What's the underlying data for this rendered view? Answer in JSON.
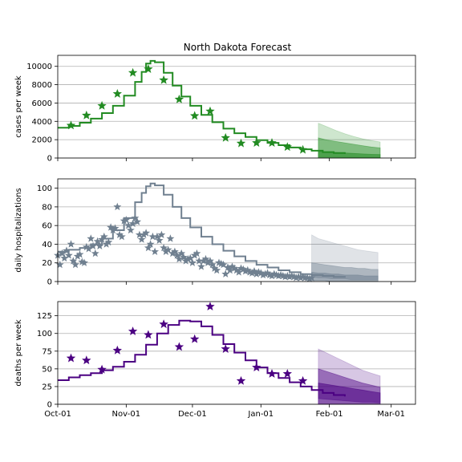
{
  "title": "North Dakota Forecast",
  "colors": {
    "cases": "#228B22",
    "hospitalizations": "#708090",
    "deaths": "#4B0082",
    "grid": "#b0b0b0"
  },
  "x_axis": {
    "ticks": [
      {
        "day": 0,
        "label": "Oct-01"
      },
      {
        "day": 31,
        "label": "Nov-01"
      },
      {
        "day": 61,
        "label": "Dec-01"
      },
      {
        "day": 92,
        "label": "Jan-01"
      },
      {
        "day": 123,
        "label": "Feb-01"
      },
      {
        "day": 151,
        "label": "Mar-01"
      }
    ],
    "range": [
      0,
      162
    ]
  },
  "chart_data": [
    {
      "type": "line",
      "ylabel": "cases per week",
      "ylim": [
        0,
        11200
      ],
      "yticks": [
        0,
        2000,
        4000,
        6000,
        8000,
        10000
      ],
      "grid": true,
      "model_curve": {
        "x": [
          0,
          5,
          10,
          15,
          20,
          25,
          30,
          35,
          38,
          40,
          42,
          44,
          48,
          52,
          56,
          60,
          65,
          70,
          75,
          80,
          85,
          90,
          95,
          100,
          105,
          110,
          115,
          120,
          125,
          130
        ],
        "y": [
          3300,
          3500,
          3850,
          4300,
          4900,
          5700,
          6800,
          8300,
          9400,
          10300,
          10600,
          10450,
          9300,
          7900,
          6700,
          5700,
          4700,
          3900,
          3200,
          2700,
          2300,
          1950,
          1650,
          1400,
          1150,
          950,
          800,
          650,
          550,
          450
        ]
      },
      "observed": {
        "x": [
          6,
          13,
          20,
          27,
          34,
          41,
          48,
          55,
          62,
          69,
          76,
          83,
          90,
          97,
          104,
          111
        ],
        "y": [
          3550,
          4650,
          5700,
          7000,
          9300,
          9700,
          8500,
          6400,
          4600,
          5100,
          2200,
          1600,
          1650,
          1650,
          1200,
          900
        ]
      },
      "forecast": {
        "x": [
          118,
          122,
          126,
          130,
          134,
          138,
          142,
          146
        ],
        "q05": [
          0,
          0,
          0,
          0,
          0,
          0,
          0,
          0
        ],
        "q25": [
          100,
          100,
          90,
          80,
          70,
          60,
          60,
          50
        ],
        "q50": [
          700,
          650,
          600,
          550,
          500,
          450,
          400,
          380
        ],
        "q75": [
          2200,
          1950,
          1800,
          1650,
          1500,
          1350,
          1200,
          1100
        ],
        "q95": [
          3800,
          3400,
          3000,
          2650,
          2350,
          2100,
          1900,
          1750
        ]
      }
    },
    {
      "type": "line",
      "ylabel": "daily hospitalizations",
      "ylim": [
        0,
        110
      ],
      "yticks": [
        0,
        20,
        40,
        60,
        80,
        100
      ],
      "grid": true,
      "model_curve": {
        "x": [
          0,
          5,
          10,
          15,
          20,
          25,
          30,
          35,
          38,
          40,
          42,
          44,
          48,
          52,
          56,
          60,
          65,
          70,
          75,
          80,
          85,
          90,
          95,
          100,
          105,
          110,
          115,
          120,
          125,
          130
        ],
        "y": [
          32,
          34,
          36,
          40,
          46,
          55,
          68,
          85,
          95,
          102,
          105,
          103,
          93,
          80,
          68,
          58,
          48,
          40,
          33,
          27,
          22,
          18,
          15,
          12,
          10,
          8,
          7,
          6,
          5,
          4
        ]
      },
      "observed": {
        "x": [
          0,
          1,
          2,
          3,
          4,
          5,
          6,
          7,
          8,
          9,
          10,
          11,
          12,
          13,
          14,
          15,
          16,
          17,
          18,
          19,
          20,
          21,
          22,
          23,
          24,
          25,
          26,
          27,
          28,
          29,
          30,
          31,
          32,
          33,
          34,
          35,
          36,
          37,
          38,
          39,
          40,
          41,
          42,
          43,
          44,
          45,
          46,
          47,
          48,
          49,
          50,
          51,
          52,
          53,
          54,
          55,
          56,
          57,
          58,
          59,
          60,
          61,
          62,
          63,
          64,
          65,
          66,
          67,
          68,
          69,
          70,
          71,
          72,
          73,
          74,
          75,
          76,
          77,
          78,
          79,
          80,
          81,
          82,
          83,
          84,
          85,
          86,
          87,
          88,
          89,
          90,
          91,
          92,
          93,
          94,
          95,
          96,
          97,
          98,
          99,
          100,
          101,
          102,
          103,
          104,
          105,
          106,
          107,
          108,
          109,
          110,
          111,
          112,
          113,
          114,
          115
        ],
        "y": [
          28,
          18,
          30,
          25,
          33,
          28,
          40,
          22,
          18,
          27,
          29,
          21,
          20,
          37,
          35,
          46,
          38,
          30,
          43,
          38,
          45,
          48,
          40,
          42,
          58,
          55,
          57,
          80,
          50,
          48,
          65,
          66,
          60,
          55,
          62,
          68,
          64,
          50,
          45,
          50,
          52,
          36,
          40,
          48,
          32,
          48,
          44,
          50,
          36,
          32,
          34,
          46,
          30,
          32,
          28,
          24,
          30,
          26,
          22,
          24,
          25,
          20,
          28,
          30,
          22,
          16,
          22,
          24,
          20,
          22,
          18,
          14,
          12,
          20,
          19,
          18,
          8,
          15,
          12,
          16,
          14,
          12,
          10,
          14,
          13,
          11,
          12,
          10,
          9,
          11,
          8,
          10,
          9,
          7,
          8,
          9,
          7,
          6,
          8,
          7,
          6,
          7,
          6,
          5,
          6,
          5,
          6,
          5,
          4,
          5,
          4,
          5,
          4,
          4,
          3,
          4
        ]
      },
      "forecast": {
        "x": [
          115,
          118,
          121,
          124,
          127,
          130,
          133,
          136,
          139,
          142,
          145
        ],
        "q05": [
          1,
          1,
          1,
          0,
          0,
          0,
          0,
          0,
          0,
          0,
          0
        ],
        "q25": [
          5,
          4,
          4,
          3,
          3,
          3,
          2,
          2,
          2,
          2,
          2
        ],
        "q50": [
          10,
          9,
          9,
          8,
          8,
          7,
          7,
          7,
          6,
          6,
          6
        ],
        "q75": [
          20,
          19,
          18,
          17,
          16,
          15,
          15,
          14,
          14,
          13,
          13
        ],
        "q95": [
          50,
          46,
          44,
          42,
          40,
          38,
          36,
          34,
          33,
          32,
          31
        ]
      }
    },
    {
      "type": "line",
      "ylabel": "deaths per week",
      "xlabel": "",
      "ylim": [
        0,
        145
      ],
      "yticks": [
        0,
        25,
        50,
        75,
        100,
        125
      ],
      "grid": true,
      "model_curve": {
        "x": [
          0,
          5,
          10,
          15,
          20,
          25,
          30,
          35,
          40,
          45,
          50,
          55,
          60,
          65,
          70,
          75,
          80,
          85,
          90,
          95,
          100,
          105,
          110,
          115,
          120,
          125,
          130
        ],
        "y": [
          34,
          38,
          41,
          44,
          48,
          53,
          60,
          70,
          84,
          100,
          112,
          118,
          117,
          110,
          98,
          85,
          73,
          62,
          52,
          44,
          37,
          31,
          25,
          20,
          16,
          13,
          11
        ]
      },
      "observed": {
        "x": [
          6,
          13,
          20,
          27,
          34,
          41,
          48,
          55,
          62,
          69,
          76,
          83,
          90,
          97,
          104,
          111
        ],
        "y": [
          65,
          62,
          49,
          76,
          103,
          98,
          113,
          81,
          92,
          138,
          78,
          33,
          52,
          43,
          43,
          33
        ]
      },
      "forecast": {
        "x": [
          118,
          122,
          126,
          130,
          134,
          138,
          142,
          146
        ],
        "q05": [
          0,
          0,
          0,
          0,
          0,
          0,
          0,
          0
        ],
        "q25": [
          8,
          7,
          6,
          5,
          4,
          3,
          3,
          2
        ],
        "q50": [
          30,
          28,
          26,
          24,
          22,
          20,
          18,
          16
        ],
        "q75": [
          50,
          46,
          42,
          38,
          34,
          30,
          27,
          24
        ],
        "q95": [
          78,
          72,
          66,
          60,
          54,
          48,
          44,
          40
        ]
      }
    }
  ]
}
